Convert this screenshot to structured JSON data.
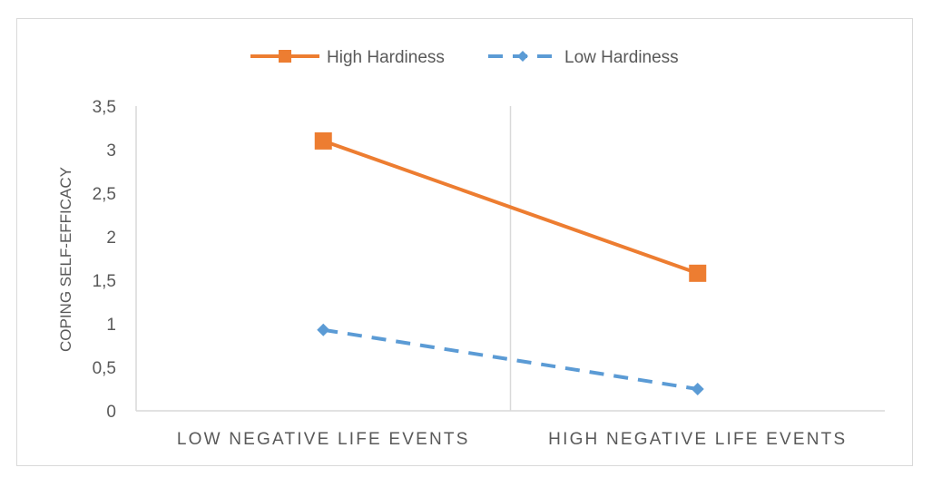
{
  "chart_data": {
    "type": "line",
    "categories": [
      "LOW NEGATIVE LIFE EVENTS",
      "HIGH NEGATIVE LIFE EVENTS"
    ],
    "series": [
      {
        "name": "High Hardiness",
        "values": [
          3.1,
          1.58
        ],
        "color": "#ED7D31",
        "line_style": "solid",
        "marker": "square"
      },
      {
        "name": "Low Hardiness",
        "values": [
          0.93,
          0.25
        ],
        "color": "#5B9BD5",
        "line_style": "dashed",
        "marker": "diamond"
      }
    ],
    "title": "",
    "xlabel": "",
    "ylabel": "COPING SELF-EFFICACY",
    "ylim": [
      0,
      3.5
    ],
    "yticks": [
      "0",
      "0,5",
      "1",
      "1,5",
      "2",
      "2,5",
      "3",
      "3,5"
    ],
    "grid": false,
    "legend_position": "top"
  }
}
